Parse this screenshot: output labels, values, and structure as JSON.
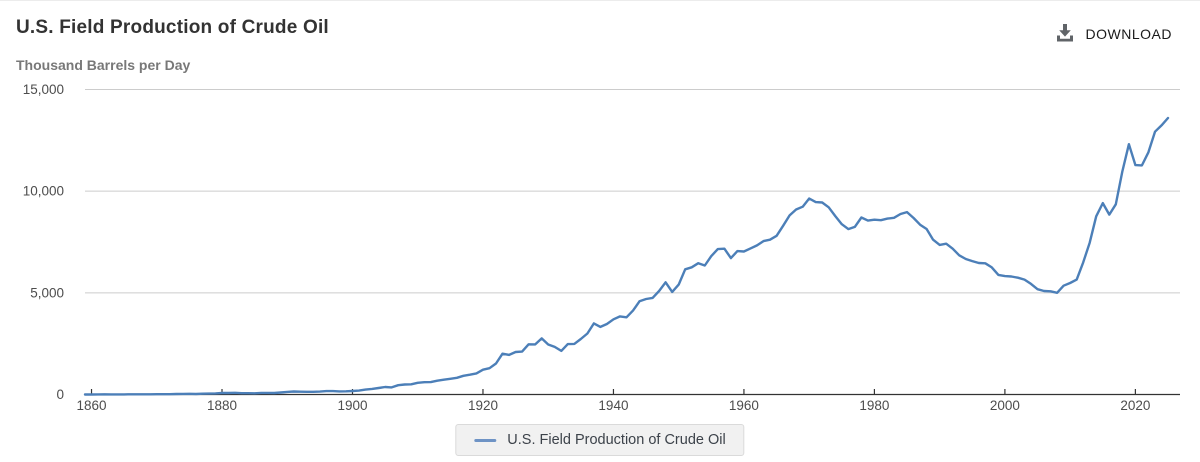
{
  "header": {
    "title": "U.S. Field Production of Crude Oil",
    "subtitle": "Thousand Barrels per Day",
    "download_label": "DOWNLOAD"
  },
  "legend": {
    "label": "U.S. Field Production of Crude Oil",
    "swatch_color": "#6e93c5"
  },
  "icons": {
    "download": "download-icon"
  },
  "colors": {
    "title_text": "#333333",
    "subtitle_text": "#787878",
    "tick_text": "#4d4d4d",
    "download_icon": "#606468"
  },
  "chart_data": {
    "type": "line",
    "title": "U.S. Field Production of Crude Oil",
    "xlabel": "",
    "ylabel": "Thousand Barrels per Day",
    "xlim": [
      1859,
      2025
    ],
    "ylim": [
      0,
      15000
    ],
    "grid": "horizontal",
    "grid_color": "#cccccc",
    "axis_color": "#333333",
    "legend_position": "bottom",
    "x_ticks": [
      1860,
      1880,
      1900,
      1920,
      1940,
      1960,
      1980,
      2000,
      2020
    ],
    "x_tick_labels": [
      "1860",
      "1880",
      "1900",
      "1920",
      "1940",
      "1960",
      "1980",
      "2000",
      "2020"
    ],
    "y_ticks": [
      0,
      5000,
      10000,
      15000
    ],
    "y_tick_labels": [
      "0",
      "5,000",
      "10,000",
      "15,000"
    ],
    "series": [
      {
        "name": "U.S. Field Production of Crude Oil",
        "color": "#4c7fb8",
        "x": [
          1859,
          1860,
          1861,
          1862,
          1863,
          1864,
          1865,
          1866,
          1867,
          1868,
          1869,
          1870,
          1871,
          1872,
          1873,
          1874,
          1875,
          1876,
          1877,
          1878,
          1879,
          1880,
          1881,
          1882,
          1883,
          1884,
          1885,
          1886,
          1887,
          1888,
          1889,
          1890,
          1891,
          1892,
          1893,
          1894,
          1895,
          1896,
          1897,
          1898,
          1899,
          1900,
          1901,
          1902,
          1903,
          1904,
          1905,
          1906,
          1907,
          1908,
          1909,
          1910,
          1911,
          1912,
          1913,
          1914,
          1915,
          1916,
          1917,
          1918,
          1919,
          1920,
          1921,
          1922,
          1923,
          1924,
          1925,
          1926,
          1927,
          1928,
          1929,
          1930,
          1931,
          1932,
          1933,
          1934,
          1935,
          1936,
          1937,
          1938,
          1939,
          1940,
          1941,
          1942,
          1943,
          1944,
          1945,
          1946,
          1947,
          1948,
          1949,
          1950,
          1951,
          1952,
          1953,
          1954,
          1955,
          1956,
          1957,
          1958,
          1959,
          1960,
          1961,
          1962,
          1963,
          1964,
          1965,
          1966,
          1967,
          1968,
          1969,
          1970,
          1971,
          1972,
          1973,
          1974,
          1975,
          1976,
          1977,
          1978,
          1979,
          1980,
          1981,
          1982,
          1983,
          1984,
          1985,
          1986,
          1987,
          1988,
          1989,
          1990,
          1991,
          1992,
          1993,
          1994,
          1995,
          1996,
          1997,
          1998,
          1999,
          2000,
          2001,
          2002,
          2003,
          2004,
          2005,
          2006,
          2007,
          2008,
          2009,
          2010,
          2011,
          2012,
          2013,
          2014,
          2015,
          2016,
          2017,
          2018,
          2019,
          2020,
          2021,
          2022,
          2023,
          2024,
          2025
        ],
        "y": [
          1,
          1,
          6,
          8,
          7,
          6,
          7,
          10,
          9,
          10,
          12,
          14,
          14,
          17,
          27,
          30,
          33,
          25,
          37,
          42,
          54,
          72,
          76,
          83,
          64,
          66,
          60,
          77,
          77,
          75,
          96,
          126,
          149,
          138,
          133,
          135,
          145,
          167,
          166,
          152,
          157,
          174,
          190,
          243,
          275,
          320,
          369,
          347,
          455,
          491,
          501,
          574,
          604,
          609,
          679,
          728,
          770,
          823,
          918,
          973,
          1037,
          1221,
          1294,
          1527,
          2007,
          1950,
          2092,
          2112,
          2467,
          2463,
          2760,
          2460,
          2341,
          2145,
          2481,
          2488,
          2730,
          3001,
          3498,
          3324,
          3466,
          3697,
          3842,
          3796,
          4125,
          4584,
          4695,
          4750,
          5088,
          5520,
          5046,
          5407,
          6158,
          6256,
          6458,
          6342,
          6807,
          7151,
          7170,
          6710,
          7054,
          7035,
          7183,
          7332,
          7542,
          7614,
          7804,
          8295,
          8810,
          9096,
          9238,
          9637,
          9463,
          9441,
          9208,
          8774,
          8375,
          8132,
          8245,
          8707,
          8552,
          8597,
          8572,
          8649,
          8688,
          8879,
          8971,
          8680,
          8349,
          8140,
          7613,
          7355,
          7417,
          7171,
          6847,
          6662,
          6560,
          6465,
          6452,
          6252,
          5881,
          5822,
          5801,
          5744,
          5649,
          5441,
          5178,
          5088,
          5077,
          5000,
          5353,
          5482,
          5652,
          6497,
          7468,
          8764,
          9415,
          8849,
          9352,
          10964,
          12311,
          11283,
          11268,
          11911,
          12927,
          13235,
          13600
        ]
      }
    ]
  }
}
